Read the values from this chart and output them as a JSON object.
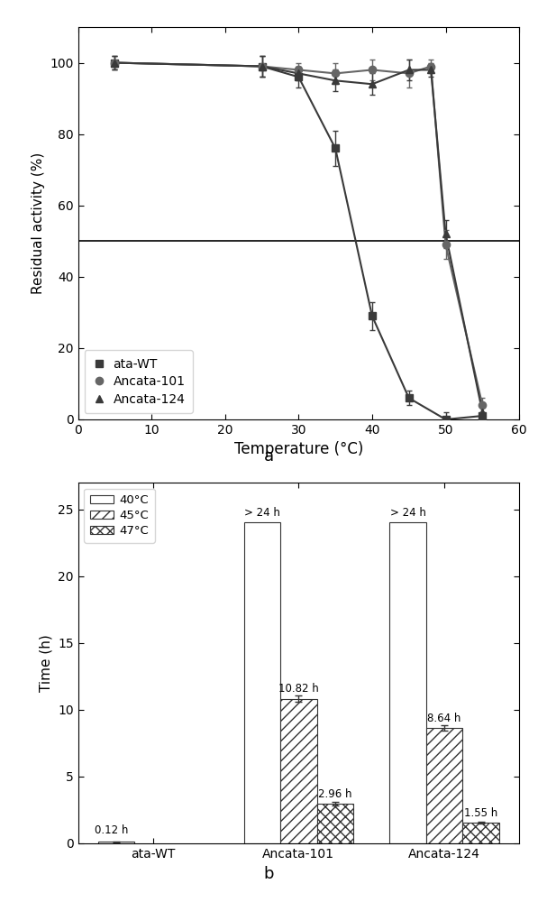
{
  "top_chart": {
    "xlabel": "Temperature (°C)",
    "ylabel": "Residual activity (%)",
    "xlim": [
      0,
      60
    ],
    "ylim": [
      0,
      110
    ],
    "hline_y": 50,
    "xticks": [
      0,
      10,
      20,
      30,
      40,
      50,
      60
    ],
    "yticks": [
      0,
      20,
      40,
      60,
      80,
      100
    ],
    "series": [
      {
        "label": "ata-WT",
        "marker": "s",
        "color": "#3a3a3a",
        "x": [
          5,
          25,
          30,
          35,
          40,
          45,
          50,
          55
        ],
        "y": [
          100,
          99,
          96,
          76,
          29,
          6,
          0,
          1
        ],
        "yerr": [
          2,
          3,
          3,
          5,
          4,
          2,
          2,
          3
        ],
        "sigmoid_p0": [
          100,
          37,
          0.6,
          0
        ]
      },
      {
        "label": "Ancata-101",
        "marker": "o",
        "color": "#666666",
        "x": [
          5,
          25,
          30,
          35,
          40,
          45,
          48,
          50,
          55
        ],
        "y": [
          100,
          99,
          98,
          97,
          98,
          97,
          99,
          49,
          4
        ],
        "yerr": [
          2,
          3,
          2,
          3,
          3,
          4,
          2,
          4,
          2
        ],
        "sigmoid_p0": [
          100,
          50,
          1.5,
          0
        ]
      },
      {
        "label": "Ancata-124",
        "marker": "^",
        "color": "#3a3a3a",
        "x": [
          5,
          25,
          30,
          35,
          40,
          45,
          48,
          50,
          55
        ],
        "y": [
          100,
          99,
          97,
          95,
          94,
          98,
          98,
          52,
          2
        ],
        "yerr": [
          2,
          3,
          2,
          3,
          3,
          3,
          2,
          4,
          2
        ],
        "sigmoid_p0": [
          100,
          50,
          1.5,
          0
        ]
      }
    ],
    "label_a": "a",
    "marker_size": 6
  },
  "bottom_chart": {
    "ylabel": "Time (h)",
    "ylim": [
      0,
      27
    ],
    "yticks": [
      0,
      5,
      10,
      15,
      20,
      25
    ],
    "categories": [
      "ata-WT",
      "Ancata-101",
      "Ancata-124"
    ],
    "temps": [
      "40°C",
      "45°C",
      "47°C"
    ],
    "values": [
      [
        0.12,
        24,
        24
      ],
      [
        null,
        10.82,
        8.64
      ],
      [
        null,
        2.96,
        1.55
      ]
    ],
    "errors": [
      [
        0.02,
        null,
        null
      ],
      [
        null,
        0.25,
        0.18
      ],
      [
        null,
        0.12,
        0.07
      ]
    ],
    "annotations": [
      {
        "text": "0.12 h",
        "cat_idx": 0,
        "temp_idx": 0
      },
      {
        "text": "> 24 h",
        "cat_idx": 1,
        "temp_idx": 0
      },
      {
        "text": "> 24 h",
        "cat_idx": 2,
        "temp_idx": 0
      },
      {
        "text": "10.82 h",
        "cat_idx": 1,
        "temp_idx": 1
      },
      {
        "text": "8.64 h",
        "cat_idx": 2,
        "temp_idx": 1
      },
      {
        "text": "2.96 h",
        "cat_idx": 1,
        "temp_idx": 2
      },
      {
        "text": "1.55 h",
        "cat_idx": 2,
        "temp_idx": 2
      }
    ],
    "label_b": "b",
    "bar_width": 0.25,
    "edge_color": "#333333",
    "hatch_list": [
      "",
      "///",
      "xxx"
    ],
    "face_colors": [
      "white",
      "white",
      "white"
    ],
    "legend_hatch": [
      "",
      "///",
      "xxx"
    ]
  }
}
